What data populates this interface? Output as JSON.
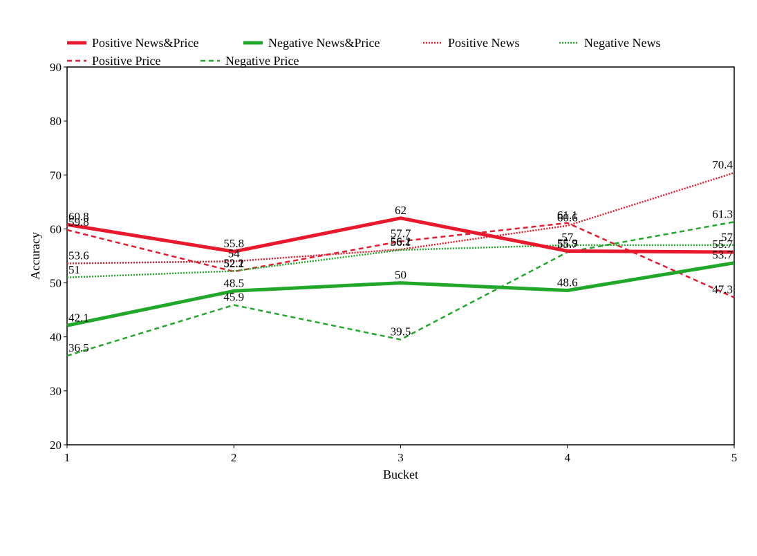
{
  "chart_data": {
    "type": "line",
    "title": "",
    "xlabel": "Bucket",
    "ylabel": "Accuracy",
    "x": [
      1,
      2,
      3,
      4,
      5
    ],
    "x_tick_labels": [
      "1",
      "2",
      "3",
      "4",
      "5"
    ],
    "ylim": [
      20,
      90
    ],
    "y_ticks": [
      20,
      30,
      40,
      50,
      60,
      70,
      80,
      90
    ],
    "grid": false,
    "legend_position": "top",
    "series": [
      {
        "name": "Positive News&Price",
        "color": "#e8192c",
        "style": "solid",
        "width": "thick",
        "values": [
          60.8,
          55.8,
          62,
          55.9,
          55.7
        ]
      },
      {
        "name": "Negative News&Price",
        "color": "#21a82a",
        "style": "solid",
        "width": "thick",
        "values": [
          42.1,
          48.5,
          50,
          48.6,
          53.7
        ]
      },
      {
        "name": "Positive News",
        "color": "#e8192c",
        "style": "dotted",
        "width": "thin",
        "values": [
          53.6,
          54,
          56.2,
          60.6,
          70.4
        ]
      },
      {
        "name": "Negative News",
        "color": "#21a82a",
        "style": "dotted",
        "width": "thin",
        "values": [
          51,
          52.2,
          56.1,
          57,
          57
        ]
      },
      {
        "name": "Positive Price",
        "color": "#e8192c",
        "style": "dashed",
        "width": "thin",
        "values": [
          59.8,
          52.1,
          57.7,
          61.1,
          47.3
        ]
      },
      {
        "name": "Negative Price",
        "color": "#21a82a",
        "style": "dashed",
        "width": "thin",
        "values": [
          36.5,
          45.9,
          39.5,
          55.7,
          61.3
        ]
      }
    ]
  }
}
